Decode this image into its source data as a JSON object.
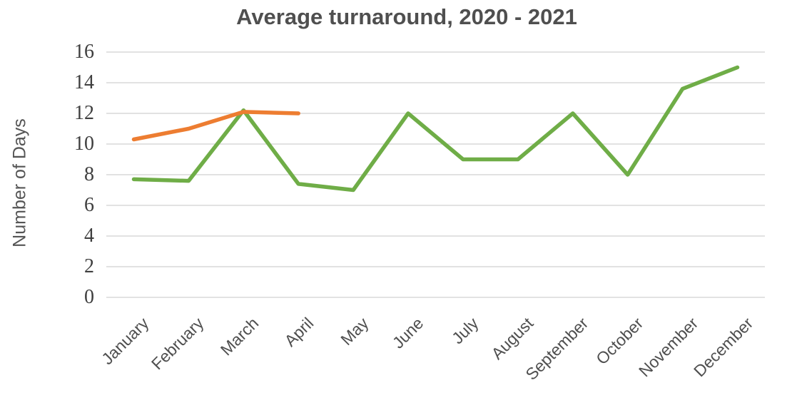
{
  "title": "Average turnaround, 2020 - 2021",
  "y_axis_title": "Number of Days",
  "colors": {
    "green_series": "#6FAD47",
    "orange_series": "#ED7D31",
    "gridline": "#D9D9D9",
    "title_text": "#4F4F4F",
    "tick_text": "#3F3F3F",
    "month_text": "#4F4F4F"
  },
  "chart_data": {
    "type": "line",
    "title": "Average turnaround, 2020 - 2021",
    "xlabel": "",
    "ylabel": "Number of Days",
    "categories": [
      "January",
      "February",
      "March",
      "April",
      "May",
      "June",
      "July",
      "August",
      "September",
      "October",
      "November",
      "December"
    ],
    "series": [
      {
        "name": "green-line",
        "color": "#6FAD47",
        "values": [
          7.7,
          7.6,
          12.2,
          7.4,
          7,
          12,
          9,
          9,
          12,
          8,
          13.6,
          15
        ]
      },
      {
        "name": "orange-line",
        "color": "#ED7D31",
        "values": [
          10.3,
          11,
          12.1,
          12,
          null,
          null,
          null,
          null,
          null,
          null,
          null,
          null
        ]
      }
    ],
    "ylim": [
      0,
      16
    ],
    "ytick_step": 2,
    "ytick_labels": [
      "0",
      "2",
      "4",
      "6",
      "8",
      "10",
      "12",
      "14",
      "16"
    ],
    "grid": true,
    "legend": "none",
    "x_label_rotation_deg": -45
  }
}
